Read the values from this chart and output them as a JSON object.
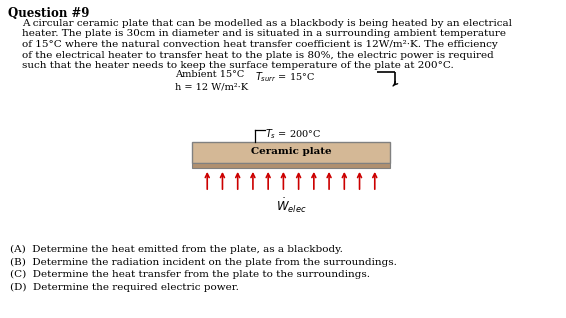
{
  "title": "Question #9",
  "para_line1": "A circular ceramic plate that can be modelled as a blackbody is being heated by an electrical",
  "para_line2": "heater. The plate is 30cm in diameter and is situated in a surrounding ambient temperature",
  "para_line3": "of 15°C where the natural convection heat transfer coefficient is 12W/m²·K. The efficiency",
  "para_line4": "of the electrical heater to transfer heat to the plate is 80%, the electric power is required",
  "para_line5": "such that the heater needs to keep the surface temperature of the plate at 200°C.",
  "ambient_label": "Ambient 15°C",
  "tsurr_label": "T",
  "tsurr_sub": "surr",
  "tsurr_val": " = 15°C",
  "h_label": "h = 12 W/m²·K",
  "ts_label": "T",
  "ts_sub": "s",
  "ts_val": " = 200°C",
  "plate_label": "Ceramic plate",
  "questions": [
    "(A)  Determine the heat emitted from the plate, as a blackbody.",
    "(B)  Determine the radiation incident on the plate from the surroundings.",
    "(C)  Determine the heat transfer from the plate to the surroundings.",
    "(D)  Determine the required electric power."
  ],
  "plate_facecolor": "#d4b896",
  "plate_edgecolor": "#808080",
  "plate_bottom_color": "#b09070",
  "arrow_color": "#cc0000",
  "bg_color": "#ffffff",
  "text_color": "#000000",
  "title_fontsize": 8.5,
  "body_fontsize": 7.5,
  "label_fontsize": 7.0,
  "question_fontsize": 7.5,
  "diag_label_fontsize": 7.0
}
